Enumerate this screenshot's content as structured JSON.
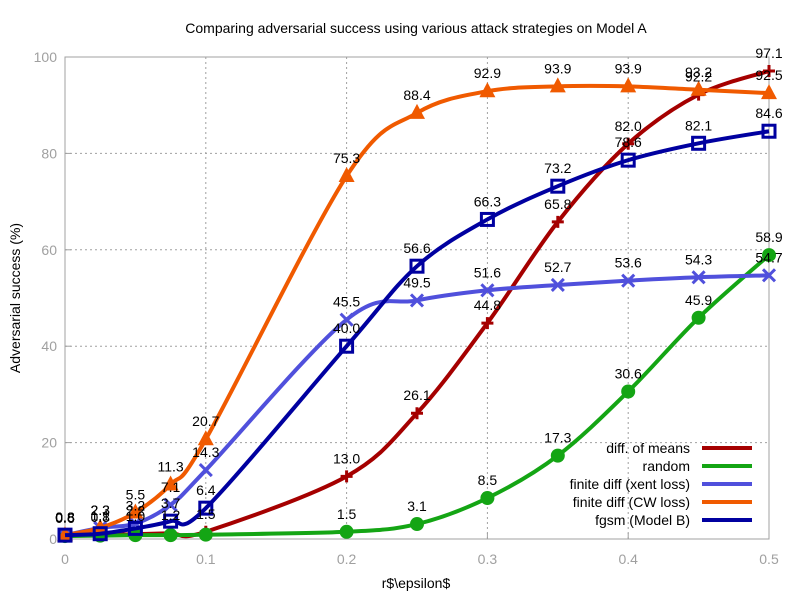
{
  "chart_data": {
    "type": "line",
    "title": "Comparing adversarial success using various attack strategies on Model A",
    "xlabel": "r$\\epsilon$",
    "ylabel": "Adversarial success (%)",
    "xlim": [
      0,
      0.5
    ],
    "ylim": [
      0,
      100
    ],
    "xticks": [
      0,
      0.1,
      0.2,
      0.3,
      0.4,
      0.5
    ],
    "xtick_labels": [
      "0",
      "0.1",
      "0.2",
      "0.3",
      "0.4",
      "0.5"
    ],
    "yticks": [
      0,
      20,
      40,
      60,
      80,
      100
    ],
    "ytick_labels": [
      "0",
      "20",
      "40",
      "60",
      "80",
      "100"
    ],
    "grid": true,
    "legend_position": "bottom-right",
    "series": [
      {
        "name": "diff. of means",
        "color": "#a50000",
        "marker": "plus",
        "x": [
          0,
          0.025,
          0.05,
          0.075,
          0.1,
          0.2,
          0.25,
          0.3,
          0.35,
          0.4,
          0.45,
          0.5
        ],
        "y": [
          0.8,
          0.8,
          1.0,
          1.2,
          1.5,
          13.0,
          26.1,
          44.8,
          65.8,
          82.0,
          92.2,
          97.1
        ],
        "labels": [
          "0.8",
          "0.8",
          "1.0",
          "1.2",
          "1.5",
          "13.0",
          "26.1",
          "44.8",
          "65.8",
          "82.0",
          "92.2",
          "97.1"
        ]
      },
      {
        "name": "random",
        "color": "#14a514",
        "marker": "circle",
        "x": [
          0,
          0.025,
          0.05,
          0.075,
          0.1,
          0.2,
          0.25,
          0.3,
          0.35,
          0.4,
          0.45,
          0.5
        ],
        "y": [
          0.6,
          0.7,
          0.8,
          0.8,
          0.9,
          1.5,
          3.1,
          8.5,
          17.3,
          30.6,
          45.9,
          58.9
        ],
        "labels": [
          "0.6",
          "",
          "",
          "",
          "",
          "1.5",
          "3.1",
          "8.5",
          "17.3",
          "30.6",
          "45.9",
          "58.9"
        ]
      },
      {
        "name": "finite diff (xent loss)",
        "color": "#5050dc",
        "marker": "cross",
        "x": [
          0,
          0.025,
          0.05,
          0.075,
          0.1,
          0.2,
          0.25,
          0.3,
          0.35,
          0.4,
          0.45,
          0.5
        ],
        "y": [
          0.8,
          2.3,
          3.2,
          7.1,
          14.3,
          45.5,
          49.5,
          51.6,
          52.7,
          53.6,
          54.3,
          54.7
        ],
        "labels": [
          "0.8",
          "2.3",
          "3.2",
          "7.1",
          "14.3",
          "45.5",
          "49.5",
          "51.6",
          "52.7",
          "53.6",
          "54.3",
          "54.7"
        ]
      },
      {
        "name": "finite diff (CW loss)",
        "color": "#f05a00",
        "marker": "triangle",
        "x": [
          0,
          0.025,
          0.05,
          0.075,
          0.1,
          0.2,
          0.25,
          0.3,
          0.35,
          0.4,
          0.45,
          0.5
        ],
        "y": [
          0.8,
          2.3,
          5.5,
          11.3,
          20.7,
          75.3,
          88.4,
          92.9,
          93.9,
          93.9,
          93.2,
          92.5
        ],
        "labels": [
          "0.8",
          "2.3",
          "5.5",
          "11.3",
          "20.7",
          "75.3",
          "88.4",
          "92.9",
          "93.9",
          "93.9",
          "93.2",
          "92.5"
        ]
      },
      {
        "name": "fgsm (Model B)",
        "color": "#0000a0",
        "marker": "square",
        "x": [
          0,
          0.025,
          0.05,
          0.075,
          0.1,
          0.2,
          0.25,
          0.3,
          0.35,
          0.4,
          0.45,
          0.5
        ],
        "y": [
          0.8,
          1.1,
          2.2,
          3.7,
          6.4,
          40.0,
          56.6,
          66.3,
          73.2,
          78.6,
          82.1,
          84.6
        ],
        "labels": [
          "0.8",
          "1.1",
          "2.2",
          "3.7",
          "6.4",
          "40.0",
          "56.6",
          "66.3",
          "73.2",
          "78.6",
          "82.1",
          "84.6"
        ]
      }
    ]
  }
}
